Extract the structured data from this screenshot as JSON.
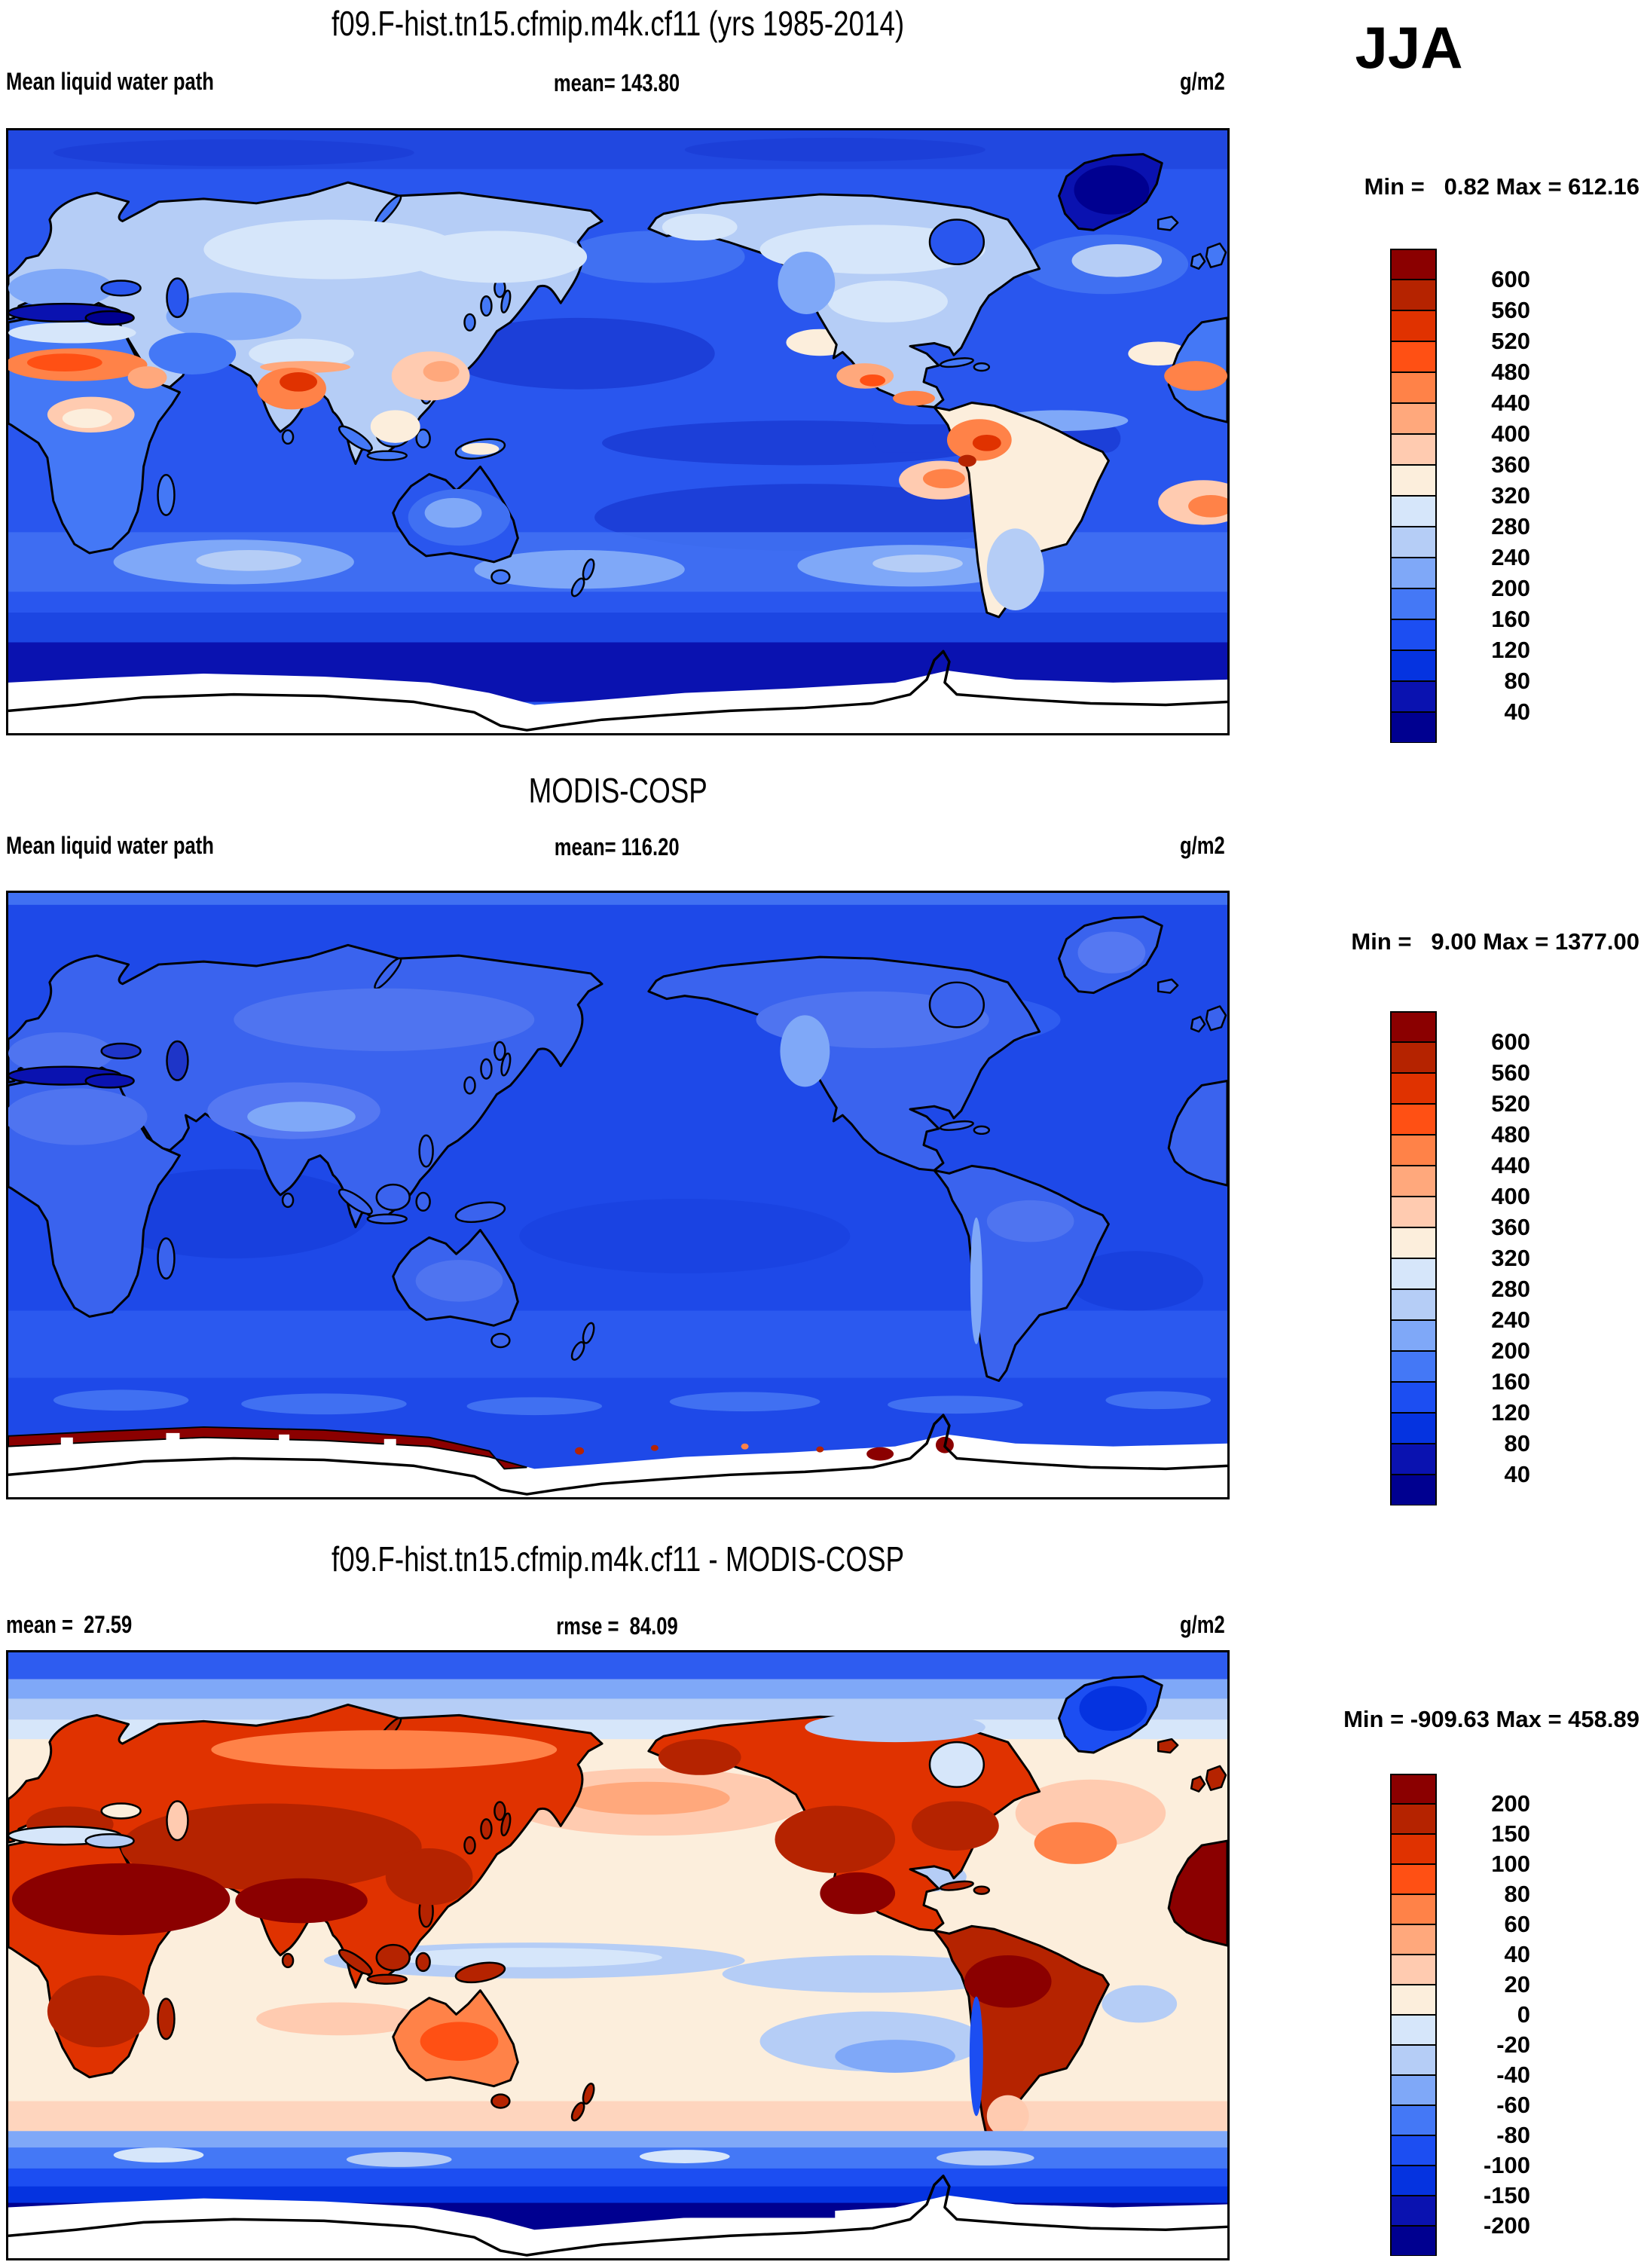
{
  "figure": {
    "season": "JJA",
    "palette": [
      "#8B0000",
      "#B52300",
      "#E03200",
      "#FF5014",
      "#FF8248",
      "#FFA87C",
      "#FFCBB0",
      "#FCEEDC",
      "#D6E6FA",
      "#B5CDF6",
      "#7FA8F8",
      "#4478F6",
      "#1C4EF2",
      "#0533E0",
      "#0A12B0",
      "#000090"
    ]
  },
  "panels": [
    {
      "title": "f09.F-hist.tn15.cfmip.m4k.cf11 (yrs 1985-2014)",
      "variable": "Mean liquid water path",
      "mean_text": "mean= 143.80",
      "unit": "g/m2",
      "minmax_text": "Min =   0.82 Max = 612.16",
      "colorbar_ticks": [
        "600",
        "560",
        "520",
        "480",
        "440",
        "400",
        "360",
        "320",
        "280",
        "240",
        "200",
        "160",
        "120",
        "80",
        "40"
      ]
    },
    {
      "title": "MODIS-COSP",
      "variable": "Mean liquid water path",
      "mean_text": "mean= 116.20",
      "unit": "g/m2",
      "minmax_text": "Min =   9.00 Max = 1377.00",
      "colorbar_ticks": [
        "600",
        "560",
        "520",
        "480",
        "440",
        "400",
        "360",
        "320",
        "280",
        "240",
        "200",
        "160",
        "120",
        "80",
        "40"
      ]
    },
    {
      "title": "f09.F-hist.tn15.cfmip.m4k.cf11 - MODIS-COSP",
      "mean_text": "mean =  27.59",
      "rmse_text": "rmse =  84.09",
      "unit": "g/m2",
      "minmax_text": "Min = -909.63 Max = 458.89",
      "colorbar_ticks": [
        "200",
        "150",
        "100",
        "80",
        "60",
        "40",
        "20",
        "0",
        "-20",
        "-40",
        "-60",
        "-80",
        "-100",
        "-150",
        "-200"
      ]
    }
  ],
  "chart_data": [
    {
      "type": "heatmap",
      "subtype": "global-filled-contour-map",
      "title": "f09.F-hist.tn15.cfmip.m4k.cf11 (yrs 1985-2014)",
      "variable": "Mean liquid water path",
      "season": "JJA",
      "units": "g/m2",
      "mean": 143.8,
      "min": 0.82,
      "max": 612.16,
      "levels": [
        40,
        80,
        120,
        160,
        200,
        240,
        280,
        320,
        360,
        400,
        440,
        480,
        520,
        560,
        600
      ],
      "palette": [
        "#8B0000",
        "#B52300",
        "#E03200",
        "#FF5014",
        "#FF8248",
        "#FFA87C",
        "#FFCBB0",
        "#FCEEDC",
        "#D6E6FA",
        "#B5CDF6",
        "#7FA8F8",
        "#4478F6",
        "#1C4EF2",
        "#0533E0",
        "#0A12B0",
        "#000090"
      ],
      "legend_position": "right",
      "notes": "Mostly 80-200 g/m2 blue oceans; high values (360-600+) over India, SE Asia, Sahel, NW South America, SE Pacific/Atlantic stratocumulus decks; dark navy minima over Mediterranean, Greenland, subtropical gyres; white masked Antarctica"
    },
    {
      "type": "heatmap",
      "subtype": "global-filled-contour-map",
      "title": "MODIS-COSP",
      "variable": "Mean liquid water path",
      "season": "JJA",
      "units": "g/m2",
      "mean": 116.2,
      "min": 9.0,
      "max": 1377.0,
      "levels": [
        40,
        80,
        120,
        160,
        200,
        240,
        280,
        320,
        360,
        400,
        440,
        480,
        520,
        560,
        600
      ],
      "palette": [
        "#8B0000",
        "#B52300",
        "#E03200",
        "#FF5014",
        "#FF8248",
        "#FFA87C",
        "#FFCBB0",
        "#FCEEDC",
        "#D6E6FA",
        "#B5CDF6",
        "#7FA8F8",
        "#4478F6",
        "#1C4EF2",
        "#0533E0",
        "#0A12B0",
        "#000090"
      ],
      "legend_position": "right",
      "notes": "Nearly uniform 80-160 g/m2 blues globally; dark red (>600) band hugging the Antarctic sea-ice edge on the left half; white masked Antarctica"
    },
    {
      "type": "heatmap",
      "subtype": "global-filled-contour-difference-map",
      "title": "f09.F-hist.tn15.cfmip.m4k.cf11 - MODIS-COSP",
      "variable": "Mean liquid water path difference",
      "season": "JJA",
      "units": "g/m2",
      "mean": 27.59,
      "rmse": 84.09,
      "min": -909.63,
      "max": 458.89,
      "levels": [
        -200,
        -150,
        -100,
        -80,
        -60,
        -40,
        -20,
        0,
        20,
        40,
        60,
        80,
        100,
        150,
        200
      ],
      "palette": [
        "#8B0000",
        "#B52300",
        "#E03200",
        "#FF5014",
        "#FF8248",
        "#FFA87C",
        "#FFCBB0",
        "#FCEEDC",
        "#D6E6FA",
        "#B5CDF6",
        "#7FA8F8",
        "#4478F6",
        "#1C4EF2",
        "#0533E0",
        "#0A12B0",
        "#000090"
      ],
      "legend_position": "right",
      "notes": "Strong positive bias (red, +100 to >200) over most continents, especially India, Arabia, Sahara, Mexico, Amazon; pale peach oceans; strong negative bias (blue, -100 to -200) over Greenland, Arctic Ocean, Chilean coast and circumpolar Southern Ocean"
    }
  ]
}
